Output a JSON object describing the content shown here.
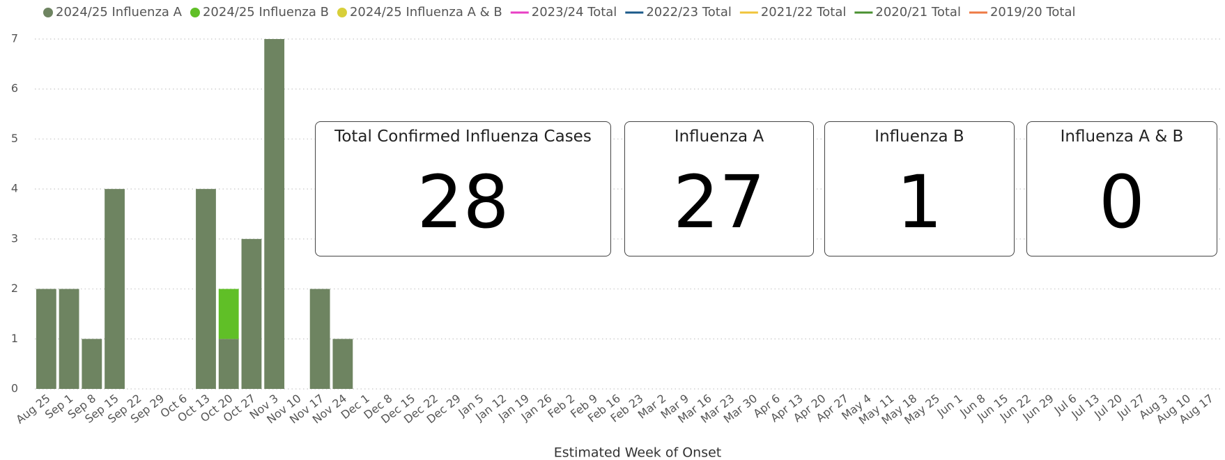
{
  "chart_data": {
    "type": "bar",
    "stacked": true,
    "x_label": "Estimated Week of Onset",
    "categories": [
      "Aug 25",
      "Sep 1",
      "Sep 8",
      "Sep 15",
      "Sep 22",
      "Sep 29",
      "Oct 6",
      "Oct 13",
      "Oct 20",
      "Oct 27",
      "Nov 3",
      "Nov 10",
      "Nov 17",
      "Nov 24",
      "Dec 1",
      "Dec 8",
      "Dec 15",
      "Dec 22",
      "Dec 29",
      "Jan 5",
      "Jan 12",
      "Jan 19",
      "Jan 26",
      "Feb 2",
      "Feb 9",
      "Feb 16",
      "Feb 23",
      "Mar 2",
      "Mar 9",
      "Mar 16",
      "Mar 23",
      "Mar 30",
      "Apr 6",
      "Apr 13",
      "Apr 20",
      "Apr 27",
      "May 4",
      "May 11",
      "May 18",
      "May 25",
      "Jun 1",
      "Jun 8",
      "Jun 15",
      "Jun 22",
      "Jun 29",
      "Jul 6",
      "Jul 13",
      "Jul 20",
      "Jul 27",
      "Aug 3",
      "Aug 10",
      "Aug 17"
    ],
    "series": [
      {
        "name": "2024/25 Influenza A",
        "color": "#6e8461",
        "type": "bar",
        "values": [
          2,
          2,
          1,
          4,
          null,
          null,
          null,
          4,
          1,
          3,
          7,
          null,
          2,
          1,
          null,
          null,
          null,
          null,
          null,
          null,
          null,
          null,
          null,
          null,
          null,
          null,
          null,
          null,
          null,
          null,
          null,
          null,
          null,
          null,
          null,
          null,
          null,
          null,
          null,
          null,
          null,
          null,
          null,
          null,
          null,
          null,
          null,
          null,
          null,
          null,
          null,
          null
        ]
      },
      {
        "name": "2024/25 Influenza B",
        "color": "#60bf27",
        "type": "bar",
        "values": [
          null,
          null,
          null,
          null,
          null,
          null,
          null,
          null,
          1,
          null,
          null,
          null,
          null,
          null,
          null,
          null,
          null,
          null,
          null,
          null,
          null,
          null,
          null,
          null,
          null,
          null,
          null,
          null,
          null,
          null,
          null,
          null,
          null,
          null,
          null,
          null,
          null,
          null,
          null,
          null,
          null,
          null,
          null,
          null,
          null,
          null,
          null,
          null,
          null,
          null,
          null,
          null
        ]
      },
      {
        "name": "2024/25 Influenza A & B",
        "color": "#d8cf3a",
        "type": "bar",
        "values": [
          null,
          null,
          null,
          null,
          null,
          null,
          null,
          null,
          null,
          null,
          null,
          null,
          null,
          null,
          null,
          null,
          null,
          null,
          null,
          null,
          null,
          null,
          null,
          null,
          null,
          null,
          null,
          null,
          null,
          null,
          null,
          null,
          null,
          null,
          null,
          null,
          null,
          null,
          null,
          null,
          null,
          null,
          null,
          null,
          null,
          null,
          null,
          null,
          null,
          null,
          null,
          null
        ]
      },
      {
        "name": "2023/24 Total",
        "color": "#e83fc4",
        "type": "line",
        "values": [
          null,
          null,
          null,
          null,
          null,
          null,
          null,
          null,
          null,
          null,
          null,
          null,
          null,
          null,
          null,
          null,
          null,
          null,
          null,
          null,
          null,
          null,
          null,
          null,
          null,
          null,
          null,
          null,
          null,
          null,
          null,
          null,
          null,
          null,
          null,
          null,
          null,
          null,
          null,
          null,
          null,
          null,
          null,
          null,
          null,
          null,
          null,
          null,
          null,
          null,
          null,
          null
        ]
      },
      {
        "name": "2022/23 Total",
        "color": "#1b5a8a",
        "type": "line",
        "values": [
          null,
          null,
          null,
          null,
          null,
          null,
          null,
          null,
          null,
          null,
          null,
          null,
          null,
          null,
          null,
          null,
          null,
          null,
          null,
          null,
          null,
          null,
          null,
          null,
          null,
          null,
          null,
          null,
          null,
          null,
          null,
          null,
          null,
          null,
          null,
          null,
          null,
          null,
          null,
          null,
          null,
          null,
          null,
          null,
          null,
          null,
          null,
          null,
          null,
          null,
          null,
          null
        ]
      },
      {
        "name": "2021/22 Total",
        "color": "#f0c43a",
        "type": "line",
        "values": [
          null,
          null,
          null,
          null,
          null,
          null,
          null,
          null,
          null,
          null,
          null,
          null,
          null,
          null,
          null,
          null,
          null,
          null,
          null,
          null,
          null,
          null,
          null,
          null,
          null,
          null,
          null,
          null,
          null,
          null,
          null,
          null,
          null,
          null,
          null,
          null,
          null,
          null,
          null,
          null,
          null,
          null,
          null,
          null,
          null,
          null,
          null,
          null,
          null,
          null,
          null,
          null
        ]
      },
      {
        "name": "2020/21 Total",
        "color": "#4a9030",
        "type": "line",
        "values": [
          null,
          null,
          null,
          null,
          null,
          null,
          null,
          null,
          null,
          null,
          null,
          null,
          null,
          null,
          null,
          null,
          null,
          null,
          null,
          null,
          null,
          null,
          null,
          null,
          null,
          null,
          null,
          null,
          null,
          null,
          null,
          null,
          null,
          null,
          null,
          null,
          null,
          null,
          null,
          null,
          null,
          null,
          null,
          null,
          null,
          null,
          null,
          null,
          null,
          null,
          null,
          null
        ]
      },
      {
        "name": "2019/20 Total",
        "color": "#ee7a45",
        "type": "line",
        "values": [
          null,
          null,
          null,
          null,
          null,
          null,
          null,
          null,
          null,
          null,
          null,
          null,
          null,
          null,
          null,
          null,
          null,
          null,
          null,
          null,
          null,
          null,
          null,
          null,
          null,
          null,
          null,
          null,
          null,
          null,
          null,
          null,
          null,
          null,
          null,
          null,
          null,
          null,
          null,
          null,
          null,
          null,
          null,
          null,
          null,
          null,
          null,
          null,
          null,
          null,
          null,
          null
        ]
      }
    ],
    "ylim": [
      0,
      7
    ],
    "yticks": [
      0,
      1,
      2,
      3,
      4,
      5,
      6,
      7
    ],
    "grid": true,
    "legend": "top"
  },
  "cards": [
    {
      "title": "Total Confirmed Influenza Cases",
      "value": 28
    },
    {
      "title": "Influenza A",
      "value": 27
    },
    {
      "title": "Influenza B",
      "value": 1
    },
    {
      "title": "Influenza A & B",
      "value": 0
    }
  ]
}
